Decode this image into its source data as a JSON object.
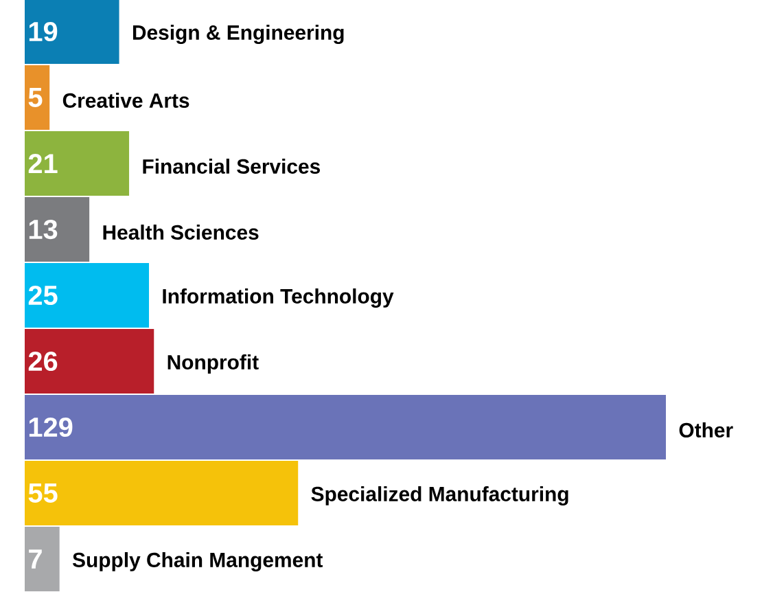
{
  "chart_data": {
    "type": "bar",
    "orientation": "horizontal",
    "data_labels": true,
    "categories": [
      "Design & Engineering",
      "Creative Arts",
      "Financial Services",
      "Health Sciences",
      "Information Technology",
      "Nonprofit",
      "Other",
      "Specialized Manufacturing",
      "Supply Chain Mangement"
    ],
    "values": [
      19,
      5,
      21,
      13,
      25,
      26,
      129,
      55,
      7
    ],
    "colors": [
      "#0b7fb4",
      "#e8912a",
      "#8db43e",
      "#7b7c7f",
      "#00bcef",
      "#b81f2a",
      "#6a73b8",
      "#f5c20a",
      "#a8a9ab"
    ]
  }
}
